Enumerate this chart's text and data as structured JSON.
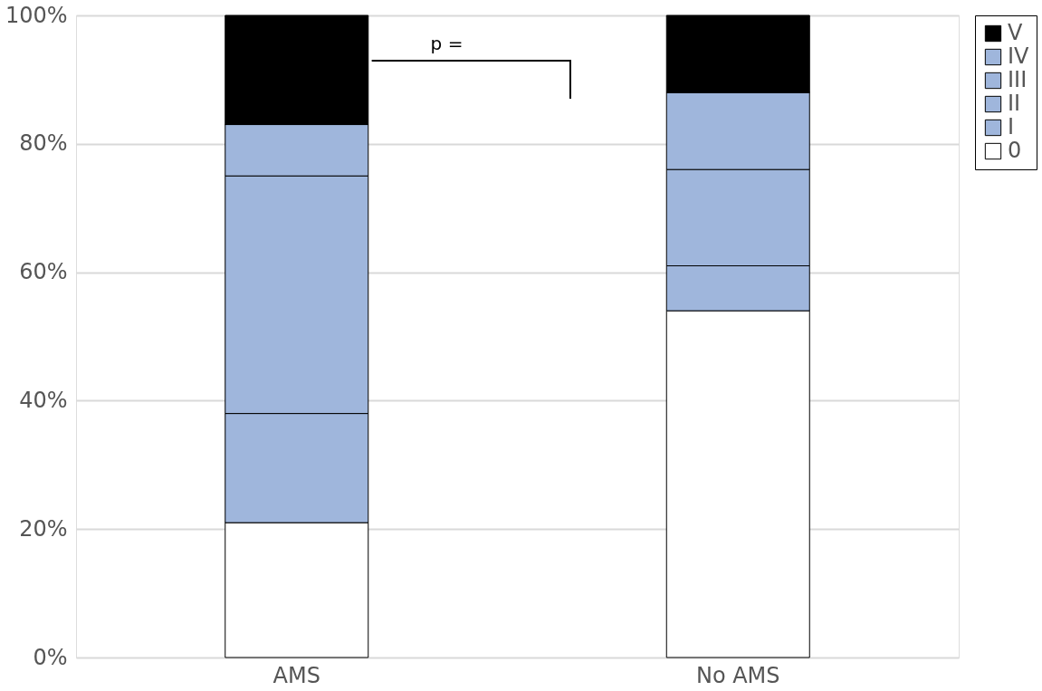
{
  "chart_data": {
    "type": "bar",
    "stacked": true,
    "categories": [
      "AMS",
      "No AMS"
    ],
    "series": [
      {
        "name": "0",
        "color": "#ffffff",
        "values": [
          21,
          54
        ]
      },
      {
        "name": "I",
        "color": "#9fb6dc",
        "values": [
          17,
          7
        ]
      },
      {
        "name": "II",
        "color": "#9fb6dc",
        "values": [
          37,
          15
        ]
      },
      {
        "name": "III",
        "color": "#9fb6dc",
        "values": [
          8,
          12
        ]
      },
      {
        "name": "IV",
        "color": "#9fb6dc",
        "values": [
          0,
          0
        ]
      },
      {
        "name": "V",
        "color": "#000000",
        "values": [
          17,
          12
        ]
      }
    ],
    "ylim": [
      0,
      100
    ],
    "yticks": [
      {
        "value": 0,
        "label": "0%"
      },
      {
        "value": 20,
        "label": "20%"
      },
      {
        "value": 40,
        "label": "40%"
      },
      {
        "value": 60,
        "label": "60%"
      },
      {
        "value": 80,
        "label": "80%"
      },
      {
        "value": 100,
        "label": "100%"
      }
    ],
    "grid": "y",
    "legend": "right",
    "annotations": [
      "p ="
    ]
  }
}
